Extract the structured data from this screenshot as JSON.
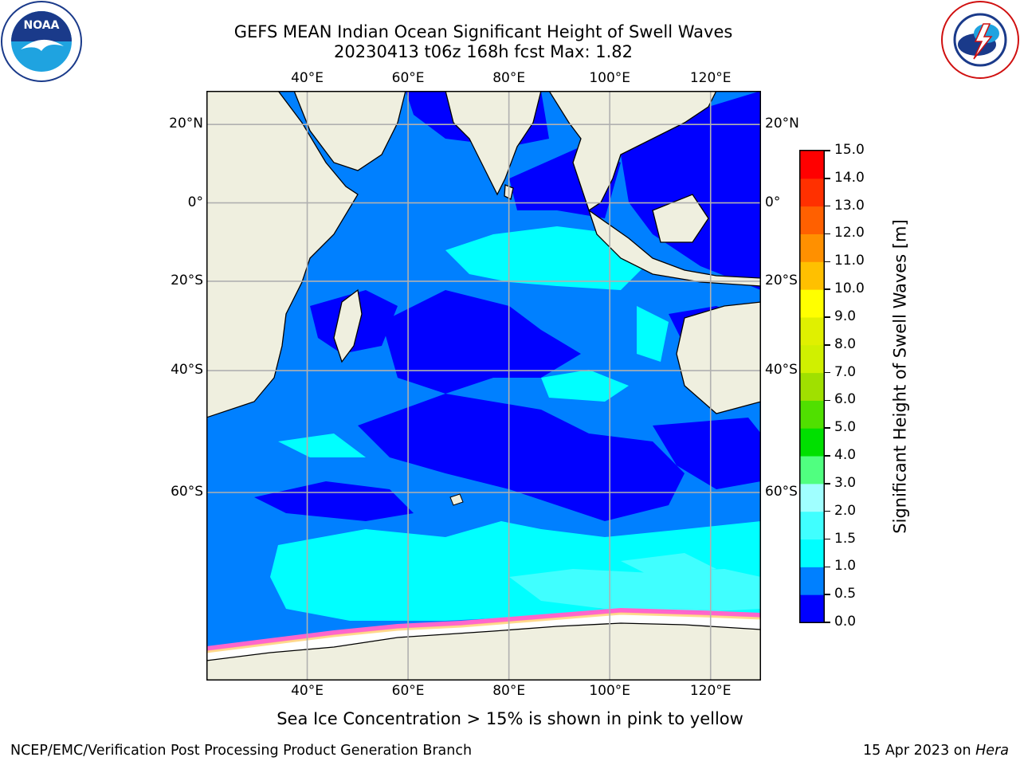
{
  "title": {
    "line1": "GEFS MEAN Indian Ocean Significant Height of Swell Waves",
    "line2": "20230413 t06z 168h fcst   Max: 1.82"
  },
  "logos": {
    "left": "noara-logo",
    "left_text": "NOAA",
    "right": "nws-logo",
    "right_text": "NATIONAL WEATHER SERVICE"
  },
  "map": {
    "lon_range": [
      20,
      130
    ],
    "lat_range": [
      -77,
      28
    ],
    "lon_ticks": [
      {
        "value": 40,
        "label": "40°E"
      },
      {
        "value": 60,
        "label": "60°E"
      },
      {
        "value": 80,
        "label": "80°E"
      },
      {
        "value": 100,
        "label": "100°E"
      },
      {
        "value": 120,
        "label": "120°E"
      }
    ],
    "lat_ticks": [
      {
        "value": 20,
        "label": "20°N"
      },
      {
        "value": 0,
        "label": "0°"
      },
      {
        "value": -20,
        "label": "20°S"
      },
      {
        "value": -40,
        "label": "40°S"
      },
      {
        "value": -60,
        "label": "60°S"
      }
    ],
    "grid": true,
    "colors": {
      "land": "#efefdf",
      "ice": "#ffffff",
      "ice_edge": "#ff66cc"
    }
  },
  "colorbar": {
    "label": "Significant Height of Swell Waves [m]",
    "levels": [
      "0.0",
      "0.5",
      "1.0",
      "1.5",
      "2.0",
      "3.0",
      "4.0",
      "5.0",
      "6.0",
      "7.0",
      "8.0",
      "9.0",
      "10.0",
      "11.0",
      "12.0",
      "13.0",
      "14.0",
      "15.0"
    ],
    "colors": [
      "#0000ff",
      "#0080ff",
      "#00ffff",
      "#40ffff",
      "#a0ffff",
      "#50ff80",
      "#00e000",
      "#50e000",
      "#a0e000",
      "#d0f000",
      "#e0f000",
      "#ffff00",
      "#ffc000",
      "#ff9000",
      "#ff6000",
      "#ff3000",
      "#ff0000"
    ]
  },
  "annotation": "Sea Ice Concentration > 15% is shown in pink to yellow",
  "footer": {
    "left": "NCEP/EMC/Verification Post Processing Product Generation Branch",
    "right_date": "15 Apr 2023 on ",
    "right_host": "Hera"
  }
}
